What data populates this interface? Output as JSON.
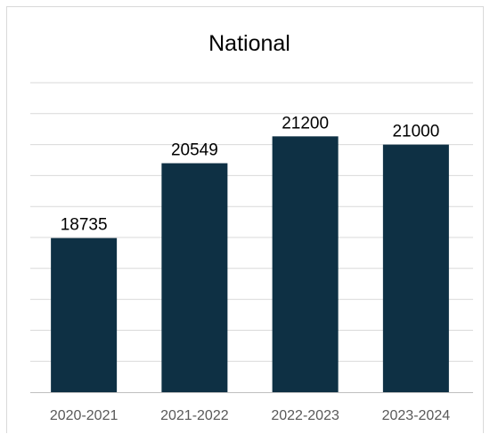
{
  "chart_data": {
    "type": "bar",
    "title": "National",
    "xlabel": "",
    "ylabel": "",
    "categories": [
      "2020-2021",
      "2021-2022",
      "2022-2023",
      "2023-2024"
    ],
    "values": [
      18735,
      20549,
      21200,
      21000
    ],
    "data_labels": [
      "18735",
      "20549",
      "21200",
      "21000"
    ],
    "ylim": [
      15000,
      22500
    ],
    "grid": true,
    "legend": "none",
    "colors": {
      "bar": "#0e3044",
      "gridline": "#d9d9d9",
      "axis": "#bfbfbf",
      "tick_text": "#595959",
      "text": "#000000"
    }
  }
}
